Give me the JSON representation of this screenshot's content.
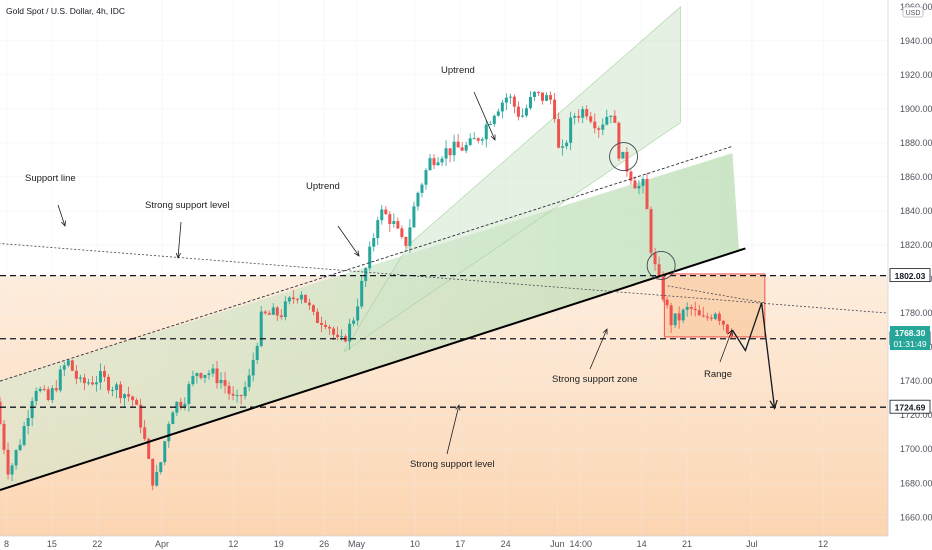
{
  "chart_data": {
    "type": "candlestick",
    "title": "Gold Spot / U.S. Dollar, 4h, IDC",
    "currency": "USD",
    "y_axis": {
      "ticks": [
        1660,
        1680,
        1700,
        1720,
        1740,
        1760,
        1780,
        1800,
        1820,
        1840,
        1860,
        1880,
        1900,
        1920,
        1940
      ],
      "tick_labels": [
        "1660.00",
        "1680.00",
        "1700.00",
        "1720.00",
        "1740.00",
        "1760.00",
        "1780.00",
        "1800.00",
        "1820.00",
        "1840.00",
        "1860.00",
        "1880.00",
        "1900.00",
        "1920.00",
        "1940.00"
      ],
      "top_label": "1960.00",
      "ylim": [
        1649,
        1964
      ]
    },
    "x_axis": {
      "ticks": [
        {
          "label": "8",
          "day": 8
        },
        {
          "label": "15",
          "day": 15
        },
        {
          "label": "22",
          "day": 22
        },
        {
          "label": "Apr",
          "day": 32
        },
        {
          "label": "12",
          "day": 43
        },
        {
          "label": "19",
          "day": 50
        },
        {
          "label": "26",
          "day": 57
        },
        {
          "label": "May",
          "day": 62
        },
        {
          "label": "10",
          "day": 71
        },
        {
          "label": "17",
          "day": 78
        },
        {
          "label": "24",
          "day": 85
        },
        {
          "label": "Jun",
          "day": 93
        },
        {
          "label": "14:00",
          "day": 96.6
        },
        {
          "label": "14",
          "day": 106
        },
        {
          "label": "21",
          "day": 113
        },
        {
          "label": "Jul",
          "day": 123
        },
        {
          "label": "12",
          "day": 134
        }
      ],
      "xlim": [
        7,
        144
      ]
    },
    "price_path": [
      [
        7,
        1728
      ],
      [
        9,
        1686
      ],
      [
        11,
        1708
      ],
      [
        13,
        1738
      ],
      [
        15,
        1728
      ],
      [
        18,
        1752
      ],
      [
        20,
        1738
      ],
      [
        23,
        1742
      ],
      [
        26,
        1735
      ],
      [
        28,
        1730
      ],
      [
        29.5,
        1714
      ],
      [
        31,
        1682
      ],
      [
        32,
        1684
      ],
      [
        34,
        1724
      ],
      [
        36,
        1730
      ],
      [
        38,
        1746
      ],
      [
        40,
        1745
      ],
      [
        42,
        1740
      ],
      [
        44,
        1726
      ],
      [
        46,
        1740
      ],
      [
        48,
        1778
      ],
      [
        51,
        1780
      ],
      [
        52,
        1785
      ],
      [
        54,
        1794
      ],
      [
        56,
        1777
      ],
      [
        58,
        1776
      ],
      [
        60,
        1760
      ],
      [
        62,
        1775
      ],
      [
        63,
        1790
      ],
      [
        65,
        1820
      ],
      [
        66,
        1840
      ],
      [
        68,
        1835
      ],
      [
        70,
        1818
      ],
      [
        72,
        1850
      ],
      [
        74,
        1870
      ],
      [
        76,
        1875
      ],
      [
        80,
        1878
      ],
      [
        82,
        1886
      ],
      [
        84,
        1900
      ],
      [
        86,
        1908
      ],
      [
        88,
        1895
      ],
      [
        90,
        1908
      ],
      [
        93,
        1905
      ],
      [
        94,
        1868
      ],
      [
        96,
        1896
      ],
      [
        98,
        1900
      ],
      [
        100,
        1890
      ],
      [
        102,
        1900
      ],
      [
        103,
        1876
      ],
      [
        104,
        1868
      ],
      [
        106,
        1854
      ],
      [
        107,
        1855
      ],
      [
        108,
        1820
      ],
      [
        109,
        1800
      ],
      [
        110,
        1790
      ],
      [
        111,
        1775
      ],
      [
        112,
        1776
      ],
      [
        114,
        1783
      ],
      [
        116,
        1775
      ],
      [
        118,
        1782
      ],
      [
        119,
        1776
      ],
      [
        120,
        1770
      ]
    ],
    "price_levels": [
      {
        "value": 1802.03,
        "label": "1802.03"
      },
      {
        "value": 1764.9,
        "label": "1764.90"
      },
      {
        "value": 1724.69,
        "label": "1724.69"
      }
    ],
    "current_price": {
      "label": "1768.30",
      "countdown": "01:31:49"
    },
    "channels": [
      {
        "name": "uptrend-channel-lower",
        "points": [
          [
            7,
            1740
          ],
          [
            120,
            1874
          ],
          [
            121,
            1737
          ]
        ]
      },
      {
        "name": "uptrend-channel-upper",
        "points": [
          [
            70,
            1820
          ],
          [
            112,
            1960
          ],
          [
            112,
            1892
          ]
        ]
      }
    ],
    "trendlines": [
      {
        "name": "support-trendline",
        "from": [
          7,
          1676
        ],
        "to": [
          122,
          1818
        ]
      },
      {
        "name": "uptrend-dashed-line",
        "from": [
          7,
          1740
        ],
        "to": [
          120,
          1878
        ]
      },
      {
        "name": "support-line-dashed",
        "from": [
          0,
          1823
        ],
        "to": [
          128,
          1786
        ]
      }
    ],
    "range_box": {
      "x": [
        109.5,
        125
      ],
      "y": [
        1766,
        1803
      ]
    },
    "annotations": [
      {
        "text": "Support line"
      },
      {
        "text": "Strong support level"
      },
      {
        "text": "Uptrend"
      },
      {
        "text": "Uptrend"
      },
      {
        "text": "Strong support zone"
      },
      {
        "text": "Range"
      },
      {
        "text": "Strong support level"
      }
    ]
  }
}
